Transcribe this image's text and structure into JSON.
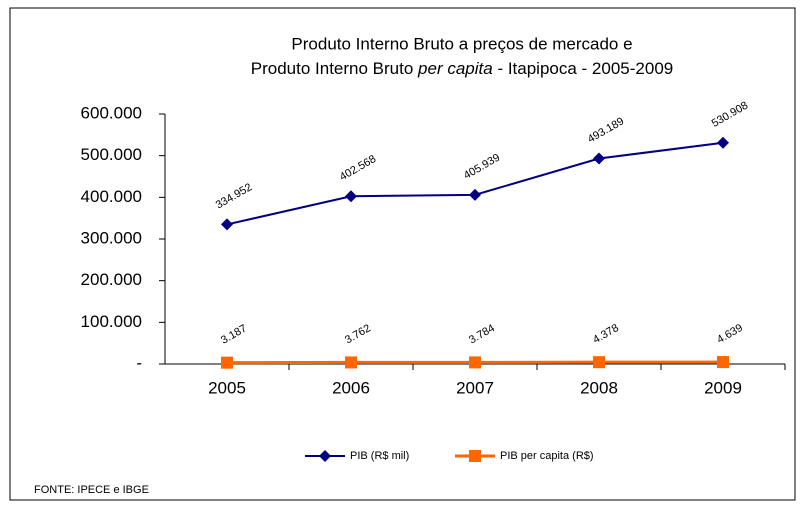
{
  "chart_data": {
    "type": "line",
    "title": [
      "Produto Interno Bruto a preços de mercado e",
      "Produto Interno Bruto",
      "per capita",
      "- Itapipoca - 2005-2009"
    ],
    "categories": [
      "2005",
      "2006",
      "2007",
      "2008",
      "2009"
    ],
    "series": [
      {
        "name": "PIB (R$ mil)",
        "color": "#000080",
        "marker": "diamond",
        "values": [
          334952,
          402568,
          405939,
          493189,
          530908
        ],
        "value_labels": [
          "334.952",
          "402.568",
          "405.939",
          "493.189",
          "530.908"
        ]
      },
      {
        "name": "PIB per capita (R$)",
        "color": "#ff6600",
        "marker": "square",
        "values": [
          3187,
          3762,
          3784,
          4378,
          4639
        ],
        "value_labels": [
          "3.187",
          "3.762",
          "3.784",
          "4.378",
          "4.639"
        ]
      }
    ],
    "ylim": [
      0,
      600000
    ],
    "yticks": [
      {
        "value": 0,
        "label": "-"
      },
      {
        "value": 100000,
        "label": "100.000"
      },
      {
        "value": 200000,
        "label": "200.000"
      },
      {
        "value": 300000,
        "label": "300.000"
      },
      {
        "value": 400000,
        "label": "400.000"
      },
      {
        "value": 500000,
        "label": "500.000"
      },
      {
        "value": 600000,
        "label": "600.000"
      }
    ],
    "source": "FONTE: IPECE e IBGE"
  }
}
